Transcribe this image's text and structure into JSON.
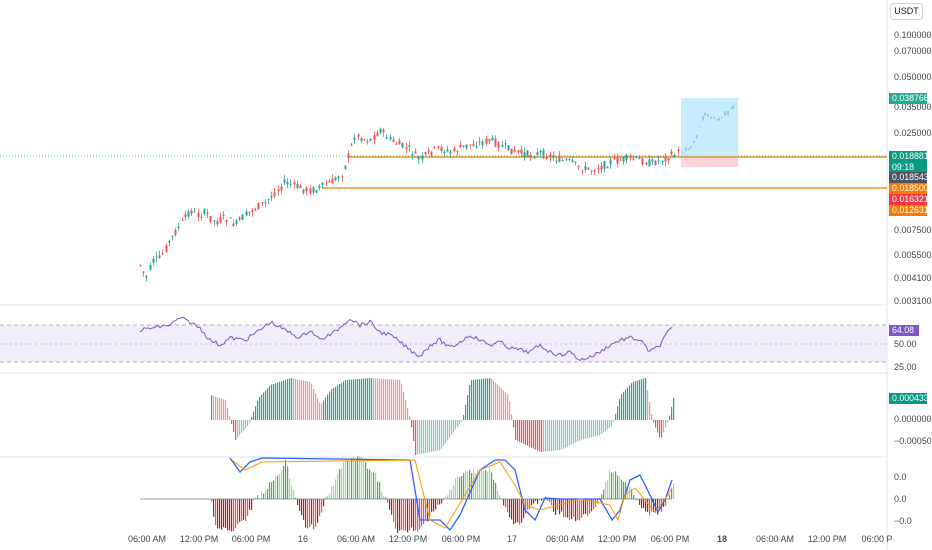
{
  "currency_unit": "USDT",
  "price_axis": {
    "ticks": [
      "0.100000",
      "0.070000",
      "0.050000",
      "0.035000",
      "0.025000",
      "0.007500",
      "0.005500",
      "0.004100",
      "0.003100"
    ],
    "badges": [
      {
        "text": "0.038766",
        "color": "#22ab94"
      },
      {
        "text": "0.018881",
        "color": "#089981"
      },
      {
        "text": "09:18",
        "color": "#089981"
      },
      {
        "text": "0.018543",
        "color": "#50535e"
      },
      {
        "text": "0.018500",
        "color": "#f57c00"
      },
      {
        "text": "0.016321",
        "color": "#f23645"
      },
      {
        "text": "0.012631",
        "color": "#f57c00"
      }
    ]
  },
  "rsi_axis": {
    "ticks": [
      "50.00",
      "25.00"
    ],
    "value_badge": {
      "text": "64.08",
      "color": "#7e57c2"
    }
  },
  "oscillator_axis": {
    "ticks": [
      "0.000000",
      "−0.000500"
    ],
    "value_badge": {
      "text": "0.000433",
      "color": "#089981"
    }
  },
  "momentum_axis": {
    "ticks": [
      "0.0",
      "0.0",
      "−0.0"
    ]
  },
  "time_axis": {
    "ticks": [
      "06:00 AM",
      "12:00 PM",
      "06:00 PM",
      "16",
      "06:00 AM",
      "12:00 PM",
      "06:00 PM",
      "17",
      "06:00 AM",
      "12:00 PM",
      "06:00 PM",
      "18",
      "06:00 AM",
      "12:00 PM",
      "06:00 P"
    ]
  },
  "colors": {
    "up": "#26a69a",
    "down": "#ef5350",
    "rsi_line": "#7e57c2",
    "rsi_band": "#ede7f6",
    "support": "#f57c00",
    "target_zone": "#b3e5fc",
    "stop_zone": "#ffcdd2",
    "projection": "#90caf9"
  }
}
